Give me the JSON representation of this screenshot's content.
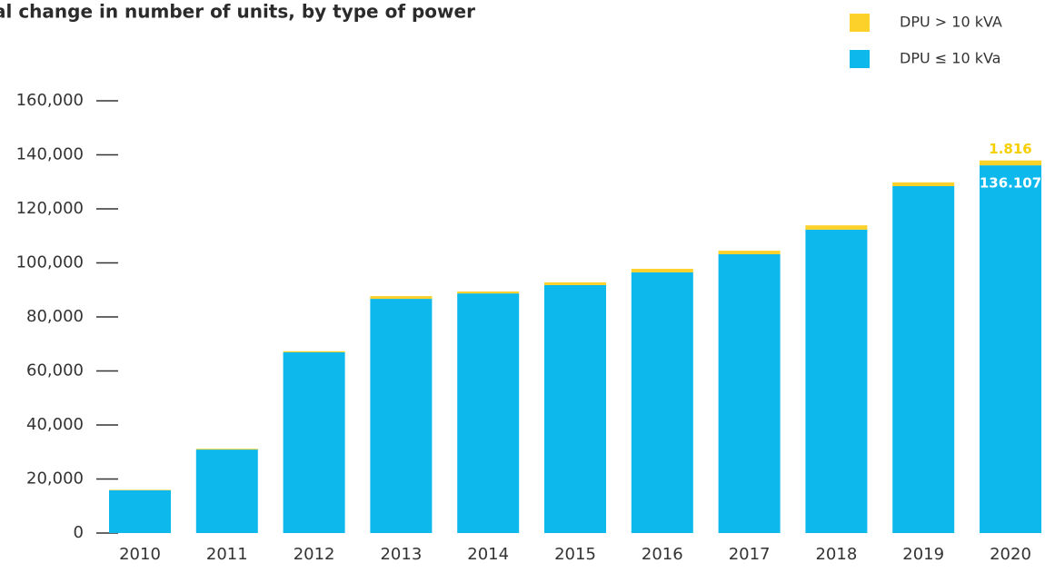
{
  "chart_data": {
    "type": "stacked_bar",
    "title": "al change in number of units, by type of power",
    "categories": [
      "2010",
      "2011",
      "2012",
      "2013",
      "2014",
      "2015",
      "2016",
      "2017",
      "2018",
      "2019",
      "2020"
    ],
    "series": [
      {
        "name": "DPU ≤ 10 kVa",
        "color": "#0db8ec",
        "values": [
          15800,
          30900,
          66900,
          86700,
          88700,
          91800,
          96500,
          103200,
          112300,
          128400,
          136107
        ],
        "value_labels": [
          null,
          null,
          null,
          null,
          null,
          null,
          null,
          null,
          null,
          null,
          "136.107"
        ]
      },
      {
        "name": "DPU > 10 kVA",
        "color": "#fcd12a",
        "values": [
          200,
          300,
          400,
          1000,
          700,
          1000,
          1300,
          1300,
          1600,
          1400,
          1816
        ],
        "value_labels": [
          null,
          null,
          null,
          null,
          null,
          null,
          null,
          null,
          null,
          null,
          "1.816"
        ]
      }
    ],
    "ylim": [
      0,
      160000
    ],
    "yticks": [
      0,
      {
        "value": 20000,
        "label": "20,000"
      },
      {
        "value": 40000,
        "label": "40,000"
      },
      {
        "value": 60000,
        "label": "60,000"
      },
      {
        "value": 80000,
        "label": "80,000"
      },
      {
        "value": 100000,
        "label": "100,000"
      },
      {
        "value": 120000,
        "label": "120,000"
      },
      {
        "value": 140000,
        "label": "140,000"
      },
      {
        "value": 160000,
        "label": "160,000"
      }
    ],
    "legend": "top-right"
  }
}
